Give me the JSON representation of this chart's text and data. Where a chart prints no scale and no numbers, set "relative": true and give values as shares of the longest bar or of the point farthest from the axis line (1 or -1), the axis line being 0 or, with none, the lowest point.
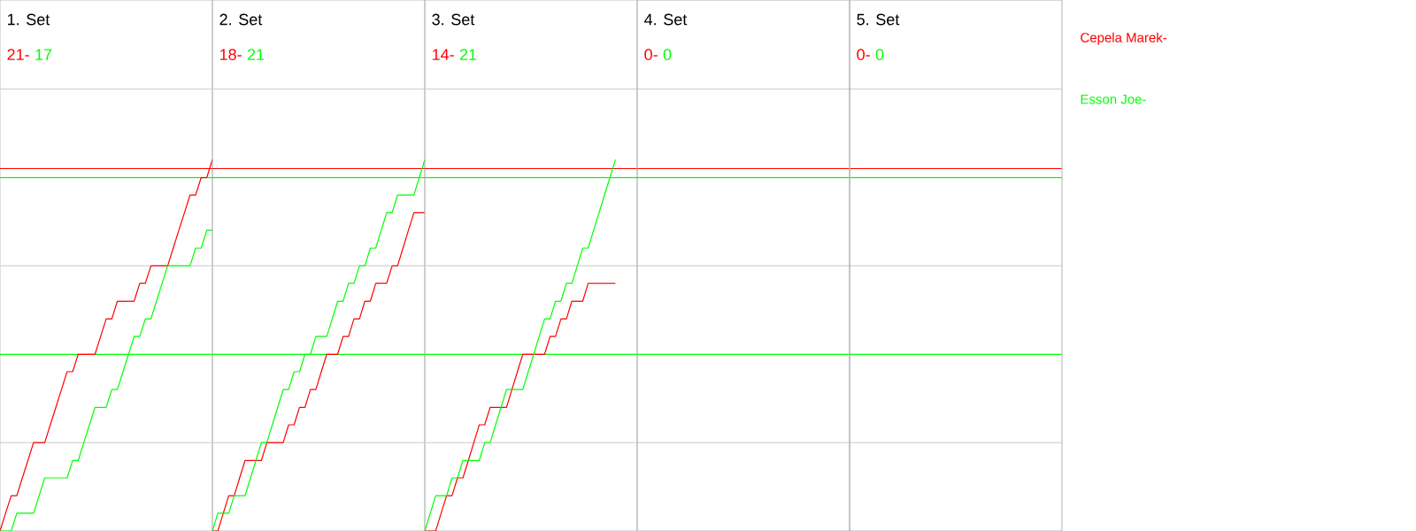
{
  "chart_data": [
    {
      "type": "line",
      "relative": true,
      "title": "1. Set",
      "annotations": [
        "21-",
        "17"
      ],
      "categories": [
        null,
        null,
        null,
        null,
        null,
        null,
        null,
        null,
        null,
        null,
        null,
        null,
        null,
        null,
        null,
        null,
        null,
        null,
        null,
        null,
        null,
        null,
        null,
        null,
        null,
        null,
        null,
        null,
        null,
        null,
        null,
        null,
        null,
        null,
        null,
        null,
        null,
        null,
        null
      ],
      "series": [
        {
          "name": "Cepela Marek-",
          "color": "#ff0000",
          "values": [
            0,
            0.048,
            0.095,
            0.095,
            0.143,
            0.19,
            0.238,
            0.238,
            0.238,
            0.286,
            0.333,
            0.381,
            0.429,
            0.429,
            0.476,
            0.476,
            0.476,
            0.476,
            0.524,
            0.571,
            0.571,
            0.619,
            0.619,
            0.619,
            0.619,
            0.667,
            0.667,
            0.714,
            0.714,
            0.714,
            0.714,
            0.762,
            0.81,
            0.857,
            0.905,
            0.905,
            0.952,
            0.952,
            1
          ]
        },
        {
          "name": "Esson Joe-",
          "color": "#00ff00",
          "values": [
            0,
            0,
            0,
            0.048,
            0.048,
            0.048,
            0.048,
            0.095,
            0.143,
            0.143,
            0.143,
            0.143,
            0.143,
            0.19,
            0.19,
            0.238,
            0.286,
            0.333,
            0.333,
            0.333,
            0.381,
            0.381,
            0.429,
            0.476,
            0.524,
            0.524,
            0.571,
            0.571,
            0.619,
            0.667,
            0.714,
            0.714,
            0.714,
            0.714,
            0.714,
            0.762,
            0.762,
            0.81,
            0.81
          ]
        }
      ],
      "ref_lines": [
        {
          "axis": "y",
          "value": 0.976,
          "color": "#ff0000"
        },
        {
          "axis": "y",
          "value": 0.952,
          "color": "#00ff00"
        },
        {
          "axis": "y",
          "value": 0.476,
          "color": "#00ff00"
        },
        {
          "axis": "y",
          "value": 0.238,
          "color": "#d3d3d3"
        },
        {
          "axis": "y",
          "value": 0.714,
          "color": "#d3d3d3"
        },
        {
          "axis": "y",
          "value": 1.19,
          "color": "#d3d3d3"
        }
      ]
    },
    {
      "type": "line",
      "relative": true,
      "title": "2. Set",
      "annotations": [
        "18-",
        "21"
      ],
      "categories": [
        null,
        null,
        null,
        null,
        null,
        null,
        null,
        null,
        null,
        null,
        null,
        null,
        null,
        null,
        null,
        null,
        null,
        null,
        null,
        null,
        null,
        null,
        null,
        null,
        null,
        null,
        null,
        null,
        null,
        null,
        null,
        null,
        null,
        null,
        null,
        null,
        null,
        null,
        null,
        null
      ],
      "series": [
        {
          "color": "#ff0000",
          "values": [
            0,
            0,
            0.048,
            0.095,
            0.095,
            0.143,
            0.19,
            0.19,
            0.19,
            0.19,
            0.238,
            0.238,
            0.238,
            0.238,
            0.286,
            0.286,
            0.333,
            0.333,
            0.381,
            0.381,
            0.429,
            0.476,
            0.476,
            0.476,
            0.524,
            0.524,
            0.571,
            0.571,
            0.619,
            0.619,
            0.667,
            0.667,
            0.667,
            0.714,
            0.714,
            0.762,
            0.81,
            0.857,
            0.857,
            0.857
          ]
        },
        {
          "color": "#00ff00",
          "values": [
            0,
            0.048,
            0.048,
            0.048,
            0.095,
            0.095,
            0.095,
            0.143,
            0.19,
            0.238,
            0.238,
            0.286,
            0.333,
            0.381,
            0.381,
            0.429,
            0.429,
            0.476,
            0.476,
            0.524,
            0.524,
            0.524,
            0.571,
            0.619,
            0.619,
            0.667,
            0.667,
            0.714,
            0.714,
            0.762,
            0.762,
            0.81,
            0.857,
            0.857,
            0.905,
            0.905,
            0.905,
            0.905,
            0.952,
            1
          ]
        }
      ],
      "ref_lines": [
        {
          "axis": "y",
          "value": 0.976,
          "color": "#ff0000"
        },
        {
          "axis": "y",
          "value": 0.952,
          "color": "#00ff00"
        },
        {
          "axis": "y",
          "value": 0.476,
          "color": "#00ff00"
        },
        {
          "axis": "y",
          "value": 0.238,
          "color": "#d3d3d3"
        },
        {
          "axis": "y",
          "value": 0.714,
          "color": "#d3d3d3"
        },
        {
          "axis": "y",
          "value": 1.19,
          "color": "#d3d3d3"
        }
      ]
    },
    {
      "type": "line",
      "relative": true,
      "title": "3. Set",
      "annotations": [
        "14-",
        "21"
      ],
      "categories": [
        null,
        null,
        null,
        null,
        null,
        null,
        null,
        null,
        null,
        null,
        null,
        null,
        null,
        null,
        null,
        null,
        null,
        null,
        null,
        null,
        null,
        null,
        null,
        null,
        null,
        null,
        null,
        null,
        null,
        null,
        null,
        null,
        null,
        null,
        null,
        null,
        null,
        null,
        null,
        null
      ],
      "series": [
        {
          "color": "#ff0000",
          "values": [
            0,
            0,
            0,
            0.048,
            0.095,
            0.095,
            0.143,
            0.143,
            0.19,
            0.238,
            0.286,
            0.286,
            0.333,
            0.333,
            0.333,
            0.333,
            0.381,
            0.429,
            0.476,
            0.476,
            0.476,
            0.476,
            0.476,
            0.524,
            0.524,
            0.571,
            0.571,
            0.619,
            0.619,
            0.619,
            0.667,
            0.667,
            0.667,
            0.667,
            0.667,
            0.667,
            null,
            null,
            null,
            null
          ]
        },
        {
          "color": "#00ff00",
          "values": [
            0,
            0.048,
            0.095,
            0.095,
            0.095,
            0.143,
            0.143,
            0.19,
            0.19,
            0.19,
            0.19,
            0.238,
            0.238,
            0.286,
            0.333,
            0.381,
            0.381,
            0.381,
            0.381,
            0.429,
            0.476,
            0.524,
            0.571,
            0.571,
            0.619,
            0.619,
            0.667,
            0.667,
            0.714,
            0.762,
            0.762,
            0.81,
            0.857,
            0.905,
            0.952,
            1,
            null,
            null,
            null,
            null
          ]
        }
      ],
      "ref_lines": [
        {
          "axis": "y",
          "value": 0.976,
          "color": "#ff0000"
        },
        {
          "axis": "y",
          "value": 0.952,
          "color": "#00ff00"
        },
        {
          "axis": "y",
          "value": 0.476,
          "color": "#00ff00"
        },
        {
          "axis": "y",
          "value": 0.238,
          "color": "#d3d3d3"
        },
        {
          "axis": "y",
          "value": 0.714,
          "color": "#d3d3d3"
        },
        {
          "axis": "y",
          "value": 1.19,
          "color": "#d3d3d3"
        }
      ]
    },
    {
      "type": "other",
      "title": "4. Set",
      "annotations": [
        "0-",
        "0"
      ]
    },
    {
      "type": "other",
      "title": "5. Set",
      "annotations": [
        "0-",
        "0"
      ]
    }
  ]
}
